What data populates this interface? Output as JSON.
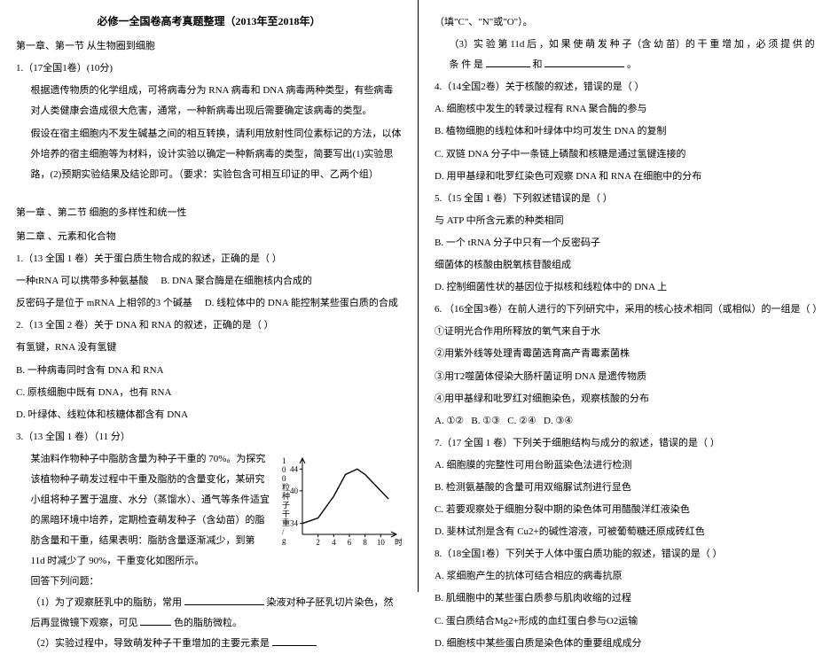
{
  "title": "必修一全国卷高考真题整理（2013年至2018年）",
  "left": {
    "sec1_header": "第一章、第一节  从生物圈到细胞",
    "q1_number": "1.（17全国1卷）(10分)",
    "q1_p1": "根据遗传物质的化学组成，可将病毒分为 RNA 病毒和 DNA 病毒两种类型，有些病毒对人类健康会造成很大危害，通常，一种新病毒出现后需要确定该病毒的类型。",
    "q1_p2": "假设在宿主细胞内不发生碱基之间的相互转换，请利用放射性同位素标记的方法，以体外培养的宿主细胞等为材料，设计实验以确定一种新病毒的类型，简要写出(1)实验思路，(2)预期实验结果及结论即可。（要求：实验包含可相互印证的甲、乙两个组）",
    "sec2_header": "第一章 、第二节  细胞的多样性和统一性",
    "sec3_header": "第二章 、元素和化合物",
    "q2_number": "1.（13 全国 1 卷）关于蛋白质生物合成的叙述，正确的是（        ）",
    "q2_a": "一种tRNA 可以携带多种氨基酸",
    "q2_b": "B. DNA 聚合酶是在细胞核内合成的",
    "q2_c": "反密码子是位于 mRNA 上相邻的3 个碱基",
    "q2_d": "D. 线粒体中的 DNA 能控制某些蛋白质的合成",
    "q3_number": "2.（13 全国 2 卷）关于 DNA 和 RNA 的叙述，正确的是（    ）",
    "q3_a": "有氢键，RNA 没有氢键",
    "q3_b": "B. 一种病毒同时含有 DNA 和 RNA",
    "q3_c": "C. 原核细胞中既有 DNA，也有 RNA",
    "q3_d": "D. 叶绿体、线粒体和核糖体都含有 DNA",
    "q4_number": "3.（13 全国 1 卷）（11 分）",
    "q4_p1": "某油料作物种子中脂肪含量为种子干重的 70%。为探究该植物种子萌发过程中干重及脂肪的含量变化，某研究小组将种子置于温度、水分（蒸馏水）、通气等条件适宜的黑暗环境中培养，定期检查萌发种子（含幼苗）的脂肪含量和干重，结果表明：脂肪含量逐渐减少，到第 11d 时减少了 90%，干重变化如图所示。",
    "q4_p2": "回答下列问题：",
    "q4_sub1a": "（1）为了观察胚乳中的脂肪，常用",
    "q4_sub1b": "染液对种子胚乳切片染色，然后再显微镜下观察，可见",
    "q4_sub1c": "色的脂肪微粒。",
    "q4_sub2": "（2）实验过程中，导致萌发种子干重增加的主要元素是"
  },
  "right": {
    "q4_sub2_tail": "（填\"C\"、\"N\"或\"O\"）。",
    "q4_sub3a": "（3）实 验 第 11d 后 ，如 果 使 萌 发 种 子（含 幼 苗）的 干 重 增 加 ，必 须 提 供 的 条 件 是",
    "q4_sub3b": "和",
    "q4_sub3c": "。",
    "q5_number": "4.（14全国2卷）关于核酸的叙述，错误的是（    ）",
    "q5_a": "A. 细胞核中发生的转录过程有 RNA 聚合酶的参与",
    "q5_b": "B. 植物细胞的线粒体和叶绿体中均可发生 DNA 的复制",
    "q5_c": "C. 双链 DNA 分子中一条链上磷酸和核糖是通过氢键连接的",
    "q5_d": "D. 用甲基绿和吡罗红染色可观察 DNA 和 RNA 在细胞中的分布",
    "q6_number": "5.（15 全国 1 卷）下列叙述错误的是（    ）",
    "q6_a": "与 ATP 中所含元素的种类相同",
    "q6_b": "B. 一个 tRNA 分子中只有一个反密码子",
    "q6_c": "细菌体的核酸由脱氧核苷酸组成",
    "q6_d": "D. 控制细菌性状的基因位于拟核和线粒体中的 DNA 上",
    "q7_number": "6. （16全国3卷）在前人进行的下列研究中，采用的核心技术相同（或相似）的一组是（        ）",
    "q7_1": "①证明光合作用所释放的氧气来自于水",
    "q7_2": "②用紫外线等处理青霉菌选育高产青霉素菌株",
    "q7_3": "③用T2噬菌体侵染大肠杆菌证明 DNA 是遗传物质",
    "q7_4": "④用甲基绿和吡罗红对细胞染色，观察核酸的分布",
    "q7_opts": "A. ①②   B. ①③   C. ②④   D. ③④",
    "q8_number": "7.（17 全国 1 卷）下列关于细胞结构与成分的叙述，错误的是（        ）",
    "q8_a": "A. 细胞膜的完整性可用台盼蓝染色法进行检测",
    "q8_b": "B. 检测氨基酸的含量可用双缩脲试剂进行显色",
    "q8_c": "C. 若要观察处于细胞分裂中期的染色体可用醋酸洋红液染色",
    "q8_d": "D. 斐林试剂是含有 Cu2+的碱性溶液，可被葡萄糖还原成砖红色",
    "q9_number": "8.（18全国1卷）下列关于人体中蛋白质功能的叙述，错误的是（    ）",
    "q9_a": "A. 浆细胞产生的抗体可结合相应的病毒抗原",
    "q9_b": "B. 肌细胞中的某些蛋白质参与肌肉收缩的过程",
    "q9_c": "C. 蛋白质结合Mg2+形成的血红蛋白参与O2运输",
    "q9_d": "D. 细胞核中某些蛋白质是染色体的重要组成成分"
  },
  "chart": {
    "type": "line",
    "x_label": "时间/d",
    "y_label": "100粒种子干重/g",
    "x_ticks": [
      2,
      4,
      6,
      8,
      10
    ],
    "y_ticks": [
      34,
      40,
      44
    ],
    "data": [
      {
        "x": 0,
        "y": 34
      },
      {
        "x": 2,
        "y": 35
      },
      {
        "x": 4,
        "y": 39
      },
      {
        "x": 5.5,
        "y": 43
      },
      {
        "x": 7,
        "y": 44
      },
      {
        "x": 8,
        "y": 43
      },
      {
        "x": 9,
        "y": 41.5
      },
      {
        "x": 10,
        "y": 40
      },
      {
        "x": 11,
        "y": 38.5
      }
    ],
    "xlim": [
      0,
      12
    ],
    "ylim": [
      32,
      46
    ],
    "background": "#ffffff",
    "line_color": "#000000",
    "axis_color": "#000000",
    "label_fontsize": 9
  }
}
